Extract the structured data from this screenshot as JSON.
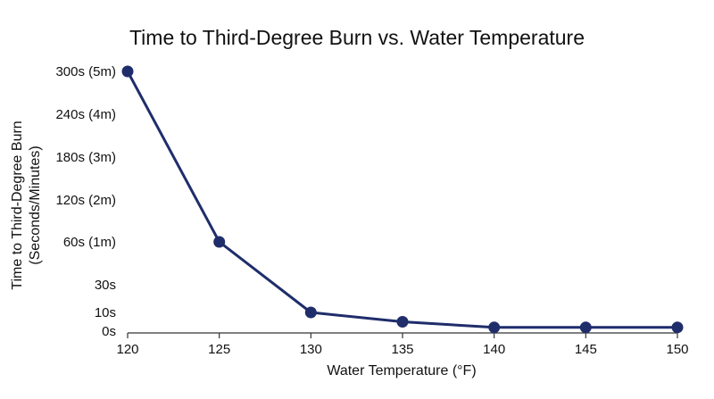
{
  "chart_data": {
    "type": "line",
    "title": "Time to Third-Degree Burn vs. Water Temperature",
    "xlabel": "Water Temperature (°F)",
    "ylabel_line1": "Time to Third-Degree Burn",
    "ylabel_line2": "(Seconds/Minutes)",
    "x": [
      120,
      125,
      130,
      135,
      140,
      145,
      150
    ],
    "series": [
      {
        "values": [
          300,
          60,
          10,
          5,
          2,
          2,
          2
        ]
      }
    ],
    "xlim": [
      120,
      150
    ],
    "ylim": [
      0,
      300
    ],
    "x_ticks": [
      {
        "value": 120,
        "label": "120"
      },
      {
        "value": 125,
        "label": "125"
      },
      {
        "value": 130,
        "label": "130"
      },
      {
        "value": 135,
        "label": "135"
      },
      {
        "value": 140,
        "label": "140"
      },
      {
        "value": 145,
        "label": "145"
      },
      {
        "value": 150,
        "label": "150"
      }
    ],
    "y_ticks": [
      {
        "value": 0,
        "label": "0s"
      },
      {
        "value": 10,
        "label": "10s"
      },
      {
        "value": 30,
        "label": "30s"
      },
      {
        "value": 60,
        "label": "60s (1m)"
      },
      {
        "value": 120,
        "label": "120s (2m)"
      },
      {
        "value": 180,
        "label": "180s (3m)"
      },
      {
        "value": 240,
        "label": "240s (4m)"
      },
      {
        "value": 300,
        "label": "300s (5m)"
      }
    ],
    "grid": false,
    "line_color": "#1f2d6b",
    "marker_color": "#1f2d6b"
  }
}
